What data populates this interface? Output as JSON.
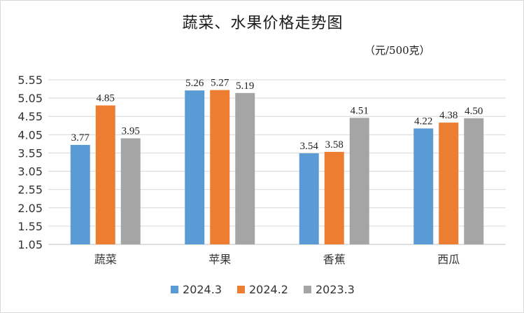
{
  "chart_data": {
    "type": "bar",
    "title": "蔬菜、水果价格走势图",
    "unit": "（元/500克）",
    "categories": [
      "蔬菜",
      "苹果",
      "香蕉",
      "西瓜"
    ],
    "series": [
      {
        "name": "2024.3",
        "color": "#5b9bd5",
        "values": [
          3.77,
          5.26,
          3.54,
          4.22
        ],
        "labels": [
          "3.77",
          "5.26",
          "3.54",
          "4.22"
        ]
      },
      {
        "name": "2024.2",
        "color": "#ed7d31",
        "values": [
          4.85,
          5.27,
          3.58,
          4.38
        ],
        "labels": [
          "4.85",
          "5.27",
          "3.58",
          "4.38"
        ]
      },
      {
        "name": "2023.3",
        "color": "#a5a5a5",
        "values": [
          3.95,
          5.19,
          4.51,
          4.5
        ],
        "labels": [
          "3.95",
          "5.19",
          "4.51",
          "4.50"
        ]
      }
    ],
    "ylim": [
      1.05,
      5.55
    ],
    "yticks": [
      "1.05",
      "1.55",
      "2.05",
      "2.55",
      "3.05",
      "3.55",
      "4.05",
      "4.55",
      "5.05",
      "5.55"
    ],
    "grid": true,
    "legend": "bottom"
  }
}
